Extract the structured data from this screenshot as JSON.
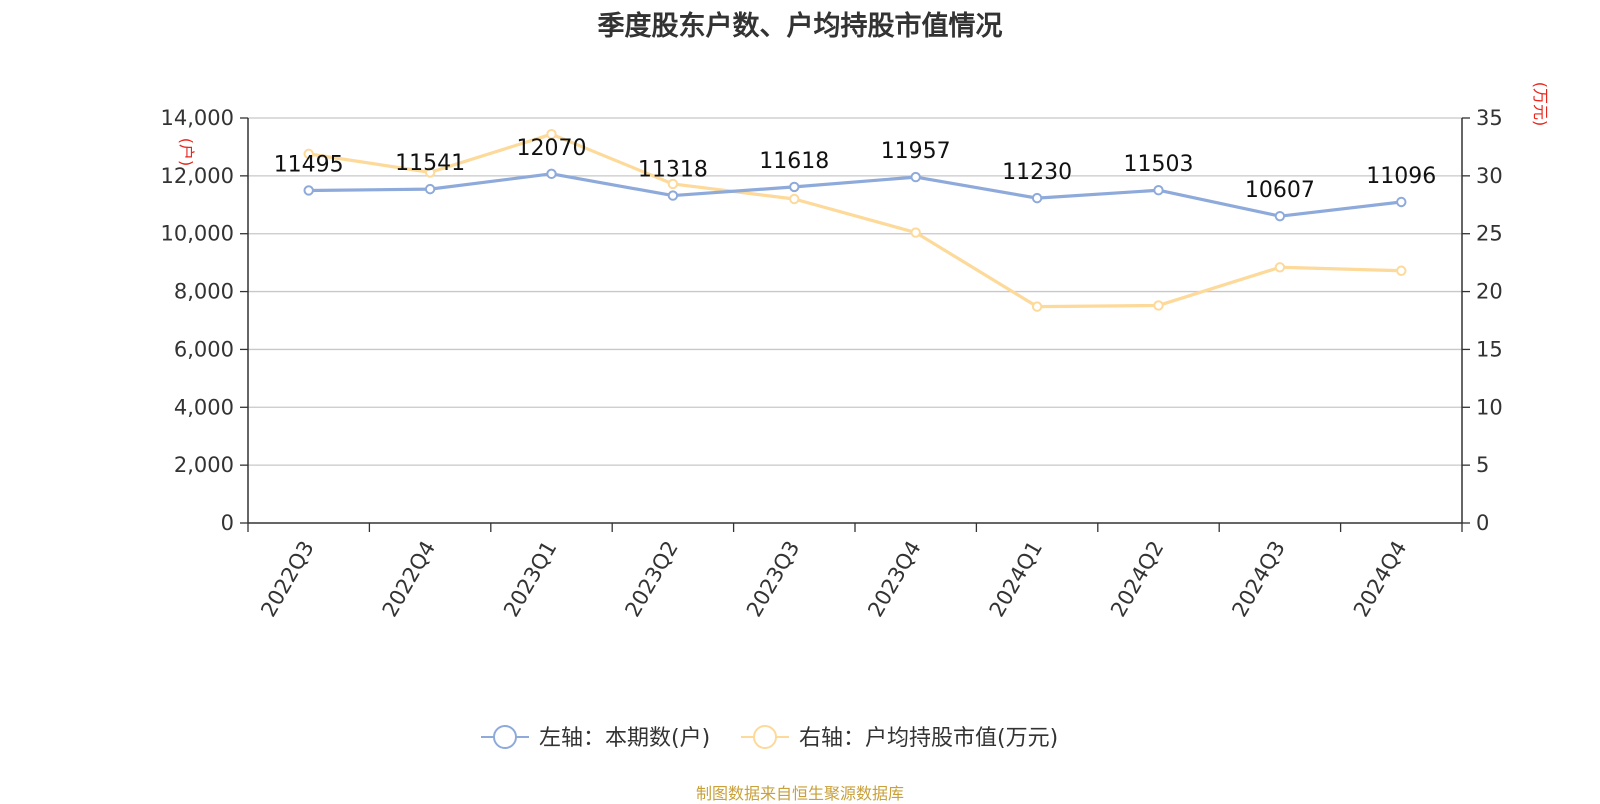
{
  "chart_data": {
    "type": "line",
    "title": "季度股东户数、户均持股市值情况",
    "categories": [
      "2022Q3",
      "2022Q4",
      "2023Q1",
      "2023Q2",
      "2023Q3",
      "2023Q4",
      "2024Q1",
      "2024Q2",
      "2024Q3",
      "2024Q4"
    ],
    "left_axis": {
      "unit": "(户)",
      "ylim": [
        0,
        14000
      ],
      "ticks": [
        "0",
        "2,000",
        "4,000",
        "6,000",
        "8,000",
        "10,000",
        "12,000",
        "14,000"
      ]
    },
    "right_axis": {
      "unit": "(万元)",
      "ylim": [
        0,
        35
      ],
      "ticks": [
        "0",
        "5",
        "10",
        "15",
        "20",
        "25",
        "30",
        "35"
      ]
    },
    "series": [
      {
        "name": "左轴：本期数(户)",
        "axis": "left",
        "color": "#8eaadb",
        "values": [
          11495,
          11541,
          12070,
          11318,
          11618,
          11957,
          11230,
          11503,
          10607,
          11096
        ],
        "labels": [
          "11495",
          "11541",
          "12070",
          "11318",
          "11618",
          "11957",
          "11230",
          "11503",
          "10607",
          "11096"
        ]
      },
      {
        "name": "右轴：户均持股市值(万元)",
        "axis": "right",
        "color": "#fdd99a",
        "values": [
          31.9,
          30.3,
          33.6,
          29.3,
          28.0,
          25.1,
          18.7,
          18.8,
          22.1,
          21.8
        ]
      }
    ],
    "grid": true,
    "legend_position": "bottom"
  },
  "footer": {
    "source": "制图数据来自恒生聚源数据库"
  }
}
